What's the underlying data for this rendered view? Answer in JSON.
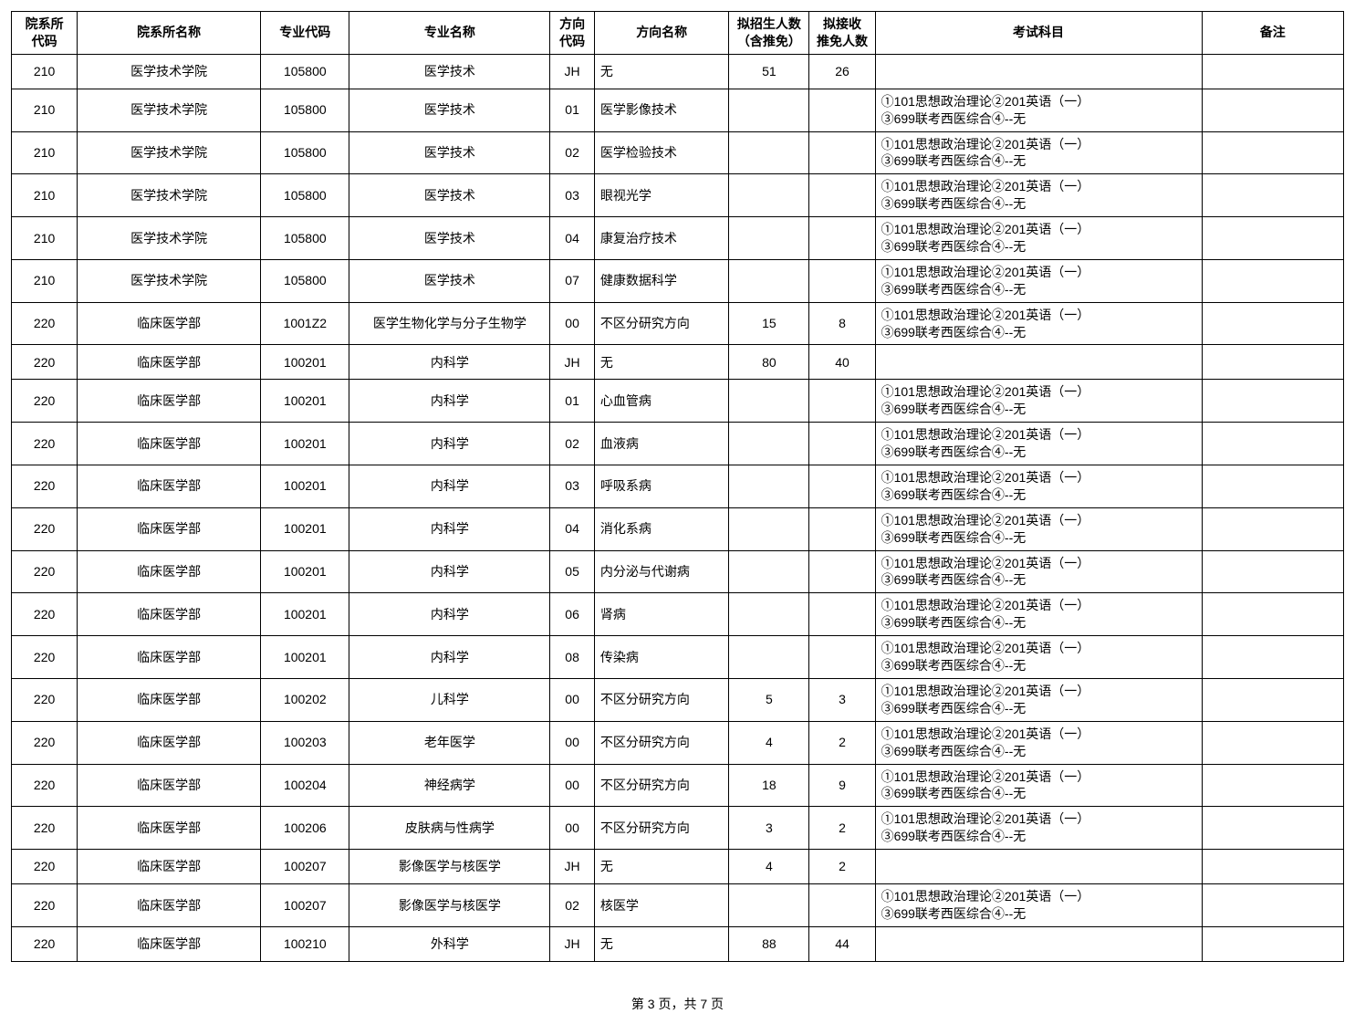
{
  "columns": [
    {
      "key": "dept_code",
      "label": "院系所\n代码",
      "align": "center",
      "widthClass": "col-dept-code"
    },
    {
      "key": "dept_name",
      "label": "院系所名称",
      "align": "center",
      "widthClass": "col-dept-name"
    },
    {
      "key": "major_code",
      "label": "专业代码",
      "align": "center",
      "widthClass": "col-major-code"
    },
    {
      "key": "major_name",
      "label": "专业名称",
      "align": "center",
      "widthClass": "col-major-name"
    },
    {
      "key": "dir_code",
      "label": "方向\n代码",
      "align": "center",
      "widthClass": "col-dir-code"
    },
    {
      "key": "dir_name",
      "label": "方向名称",
      "align": "left",
      "widthClass": "col-dir-name"
    },
    {
      "key": "planned",
      "label": "拟招生人数\n（含推免）",
      "align": "center",
      "widthClass": "col-planned"
    },
    {
      "key": "exempt",
      "label": "拟接收\n推免人数",
      "align": "center",
      "widthClass": "col-exempt"
    },
    {
      "key": "subjects",
      "label": "考试科目",
      "align": "left",
      "widthClass": "col-subjects"
    },
    {
      "key": "remarks",
      "label": "备注",
      "align": "center",
      "widthClass": "col-remarks"
    }
  ],
  "rows": [
    {
      "dept_code": "210",
      "dept_name": "医学技术学院",
      "major_code": "105800",
      "major_name": "医学技术",
      "dir_code": "JH",
      "dir_name": "无",
      "planned": "51",
      "exempt": "26",
      "subjects": "",
      "remarks": ""
    },
    {
      "dept_code": "210",
      "dept_name": "医学技术学院",
      "major_code": "105800",
      "major_name": "医学技术",
      "dir_code": "01",
      "dir_name": "医学影像技术",
      "planned": "",
      "exempt": "",
      "subjects": "①101思想政治理论②201英语（一）\n③699联考西医综合④--无",
      "remarks": ""
    },
    {
      "dept_code": "210",
      "dept_name": "医学技术学院",
      "major_code": "105800",
      "major_name": "医学技术",
      "dir_code": "02",
      "dir_name": "医学检验技术",
      "planned": "",
      "exempt": "",
      "subjects": "①101思想政治理论②201英语（一）\n③699联考西医综合④--无",
      "remarks": ""
    },
    {
      "dept_code": "210",
      "dept_name": "医学技术学院",
      "major_code": "105800",
      "major_name": "医学技术",
      "dir_code": "03",
      "dir_name": "眼视光学",
      "planned": "",
      "exempt": "",
      "subjects": "①101思想政治理论②201英语（一）\n③699联考西医综合④--无",
      "remarks": ""
    },
    {
      "dept_code": "210",
      "dept_name": "医学技术学院",
      "major_code": "105800",
      "major_name": "医学技术",
      "dir_code": "04",
      "dir_name": "康复治疗技术",
      "planned": "",
      "exempt": "",
      "subjects": "①101思想政治理论②201英语（一）\n③699联考西医综合④--无",
      "remarks": ""
    },
    {
      "dept_code": "210",
      "dept_name": "医学技术学院",
      "major_code": "105800",
      "major_name": "医学技术",
      "dir_code": "07",
      "dir_name": "健康数据科学",
      "planned": "",
      "exempt": "",
      "subjects": "①101思想政治理论②201英语（一）\n③699联考西医综合④--无",
      "remarks": ""
    },
    {
      "dept_code": "220",
      "dept_name": "临床医学部",
      "major_code": "1001Z2",
      "major_name": "医学生物化学与分子生物学",
      "dir_code": "00",
      "dir_name": "不区分研究方向",
      "planned": "15",
      "exempt": "8",
      "subjects": "①101思想政治理论②201英语（一）\n③699联考西医综合④--无",
      "remarks": ""
    },
    {
      "dept_code": "220",
      "dept_name": "临床医学部",
      "major_code": "100201",
      "major_name": "内科学",
      "dir_code": "JH",
      "dir_name": "无",
      "planned": "80",
      "exempt": "40",
      "subjects": "",
      "remarks": ""
    },
    {
      "dept_code": "220",
      "dept_name": "临床医学部",
      "major_code": "100201",
      "major_name": "内科学",
      "dir_code": "01",
      "dir_name": "心血管病",
      "planned": "",
      "exempt": "",
      "subjects": "①101思想政治理论②201英语（一）\n③699联考西医综合④--无",
      "remarks": ""
    },
    {
      "dept_code": "220",
      "dept_name": "临床医学部",
      "major_code": "100201",
      "major_name": "内科学",
      "dir_code": "02",
      "dir_name": "血液病",
      "planned": "",
      "exempt": "",
      "subjects": "①101思想政治理论②201英语（一）\n③699联考西医综合④--无",
      "remarks": ""
    },
    {
      "dept_code": "220",
      "dept_name": "临床医学部",
      "major_code": "100201",
      "major_name": "内科学",
      "dir_code": "03",
      "dir_name": "呼吸系病",
      "planned": "",
      "exempt": "",
      "subjects": "①101思想政治理论②201英语（一）\n③699联考西医综合④--无",
      "remarks": ""
    },
    {
      "dept_code": "220",
      "dept_name": "临床医学部",
      "major_code": "100201",
      "major_name": "内科学",
      "dir_code": "04",
      "dir_name": "消化系病",
      "planned": "",
      "exempt": "",
      "subjects": "①101思想政治理论②201英语（一）\n③699联考西医综合④--无",
      "remarks": ""
    },
    {
      "dept_code": "220",
      "dept_name": "临床医学部",
      "major_code": "100201",
      "major_name": "内科学",
      "dir_code": "05",
      "dir_name": "内分泌与代谢病",
      "planned": "",
      "exempt": "",
      "subjects": "①101思想政治理论②201英语（一）\n③699联考西医综合④--无",
      "remarks": ""
    },
    {
      "dept_code": "220",
      "dept_name": "临床医学部",
      "major_code": "100201",
      "major_name": "内科学",
      "dir_code": "06",
      "dir_name": "肾病",
      "planned": "",
      "exempt": "",
      "subjects": "①101思想政治理论②201英语（一）\n③699联考西医综合④--无",
      "remarks": ""
    },
    {
      "dept_code": "220",
      "dept_name": "临床医学部",
      "major_code": "100201",
      "major_name": "内科学",
      "dir_code": "08",
      "dir_name": "传染病",
      "planned": "",
      "exempt": "",
      "subjects": "①101思想政治理论②201英语（一）\n③699联考西医综合④--无",
      "remarks": ""
    },
    {
      "dept_code": "220",
      "dept_name": "临床医学部",
      "major_code": "100202",
      "major_name": "儿科学",
      "dir_code": "00",
      "dir_name": "不区分研究方向",
      "planned": "5",
      "exempt": "3",
      "subjects": "①101思想政治理论②201英语（一）\n③699联考西医综合④--无",
      "remarks": ""
    },
    {
      "dept_code": "220",
      "dept_name": "临床医学部",
      "major_code": "100203",
      "major_name": "老年医学",
      "dir_code": "00",
      "dir_name": "不区分研究方向",
      "planned": "4",
      "exempt": "2",
      "subjects": "①101思想政治理论②201英语（一）\n③699联考西医综合④--无",
      "remarks": ""
    },
    {
      "dept_code": "220",
      "dept_name": "临床医学部",
      "major_code": "100204",
      "major_name": "神经病学",
      "dir_code": "00",
      "dir_name": "不区分研究方向",
      "planned": "18",
      "exempt": "9",
      "subjects": "①101思想政治理论②201英语（一）\n③699联考西医综合④--无",
      "remarks": ""
    },
    {
      "dept_code": "220",
      "dept_name": "临床医学部",
      "major_code": "100206",
      "major_name": "皮肤病与性病学",
      "dir_code": "00",
      "dir_name": "不区分研究方向",
      "planned": "3",
      "exempt": "2",
      "subjects": "①101思想政治理论②201英语（一）\n③699联考西医综合④--无",
      "remarks": ""
    },
    {
      "dept_code": "220",
      "dept_name": "临床医学部",
      "major_code": "100207",
      "major_name": "影像医学与核医学",
      "dir_code": "JH",
      "dir_name": "无",
      "planned": "4",
      "exempt": "2",
      "subjects": "",
      "remarks": ""
    },
    {
      "dept_code": "220",
      "dept_name": "临床医学部",
      "major_code": "100207",
      "major_name": "影像医学与核医学",
      "dir_code": "02",
      "dir_name": "核医学",
      "planned": "",
      "exempt": "",
      "subjects": "①101思想政治理论②201英语（一）\n③699联考西医综合④--无",
      "remarks": ""
    },
    {
      "dept_code": "220",
      "dept_name": "临床医学部",
      "major_code": "100210",
      "major_name": "外科学",
      "dir_code": "JH",
      "dir_name": "无",
      "planned": "88",
      "exempt": "44",
      "subjects": "",
      "remarks": ""
    }
  ],
  "footer": "第 3 页，共 7 页"
}
